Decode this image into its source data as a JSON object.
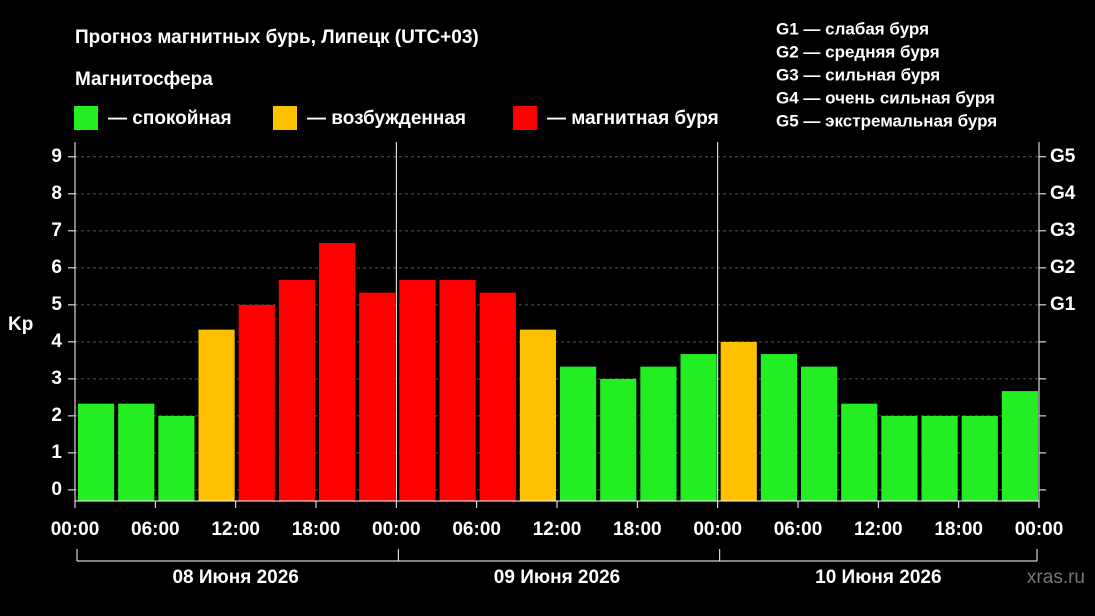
{
  "chart_data": {
    "type": "bar",
    "title": "Прогноз магнитных бурь, Липецк (UTC+03)",
    "legend_title": "Магнитосфера",
    "legend": [
      {
        "label": "— спокойная",
        "color": "#22ee22"
      },
      {
        "label": "— возбужденная",
        "color": "#ffc000"
      },
      {
        "label": "— магнитная буря",
        "color": "#ff0000"
      }
    ],
    "storm_scale": [
      "G1 — слабая буря",
      "G2 — средняя буря",
      "G3 — сильная буря",
      "G4 — очень сильная буря",
      "G5 — экстремальная буря"
    ],
    "y_label": "Kp",
    "ylim": [
      -0.3,
      9.4
    ],
    "yticks": [
      0,
      1,
      2,
      3,
      4,
      5,
      6,
      7,
      8,
      9
    ],
    "y2ticks": [
      {
        "value": 5,
        "label": "G1"
      },
      {
        "value": 6,
        "label": "G2"
      },
      {
        "value": 7,
        "label": "G3"
      },
      {
        "value": 8,
        "label": "G4"
      },
      {
        "value": 9,
        "label": "G5"
      }
    ],
    "grid": true,
    "time_labels": [
      "00:00",
      "06:00",
      "12:00",
      "18:00",
      "00:00",
      "06:00",
      "12:00",
      "18:00",
      "00:00",
      "06:00",
      "12:00",
      "18:00",
      "00:00"
    ],
    "days": [
      "08 Июня 2026",
      "09 Июня 2026",
      "10 Июня 2026"
    ],
    "values": [
      2.33,
      2.33,
      2.0,
      4.33,
      5.0,
      5.67,
      6.67,
      5.33,
      5.67,
      5.67,
      5.33,
      4.33,
      3.33,
      3.0,
      3.33,
      3.67,
      4.0,
      3.67,
      3.33,
      2.33,
      2.0,
      2.0,
      2.0,
      2.67
    ],
    "colors": [
      "#22ee22",
      "#22ee22",
      "#22ee22",
      "#ffc000",
      "#ff0000",
      "#ff0000",
      "#ff0000",
      "#ff0000",
      "#ff0000",
      "#ff0000",
      "#ff0000",
      "#ffc000",
      "#22ee22",
      "#22ee22",
      "#22ee22",
      "#22ee22",
      "#ffc000",
      "#22ee22",
      "#22ee22",
      "#22ee22",
      "#22ee22",
      "#22ee22",
      "#22ee22",
      "#22ee22"
    ],
    "watermark": "xras.ru"
  }
}
